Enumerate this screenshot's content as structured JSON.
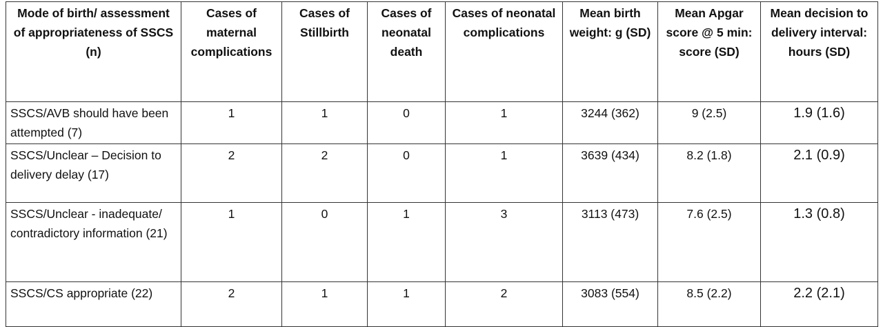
{
  "table": {
    "header": [
      "Mode of birth/ assessment of appropriateness of SSCS (n)",
      "Cases of maternal complications",
      "Cases of Stillbirth",
      "Cases of neonatal death",
      "Cases of neonatal complications",
      "Mean birth weight: g (SD)",
      "Mean Apgar score @ 5 min: score (SD)",
      "Mean decision to delivery interval: hours (SD)"
    ],
    "rows": [
      [
        "SSCS/AVB should have been attempted (7)",
        1,
        1,
        0,
        1,
        "3244 (362)",
        "9 (2.5)",
        "1.9 (1.6)"
      ],
      [
        "SSCS/Unclear – Decision to delivery delay (17)",
        2,
        2,
        0,
        1,
        "3639 (434)",
        "8.2 (1.8)",
        "2.1 (0.9)"
      ],
      [
        "SSCS/Unclear - inadequate/ contradictory information (21)",
        1,
        0,
        1,
        3,
        "3113 (473)",
        "7.6 (2.5)",
        "1.3 (0.8)"
      ],
      [
        "SSCS/CS appropriate (22)",
        2,
        1,
        1,
        2,
        "3083 (554)",
        "8.5 (2.2)",
        "2.2 (2.1)"
      ]
    ]
  }
}
